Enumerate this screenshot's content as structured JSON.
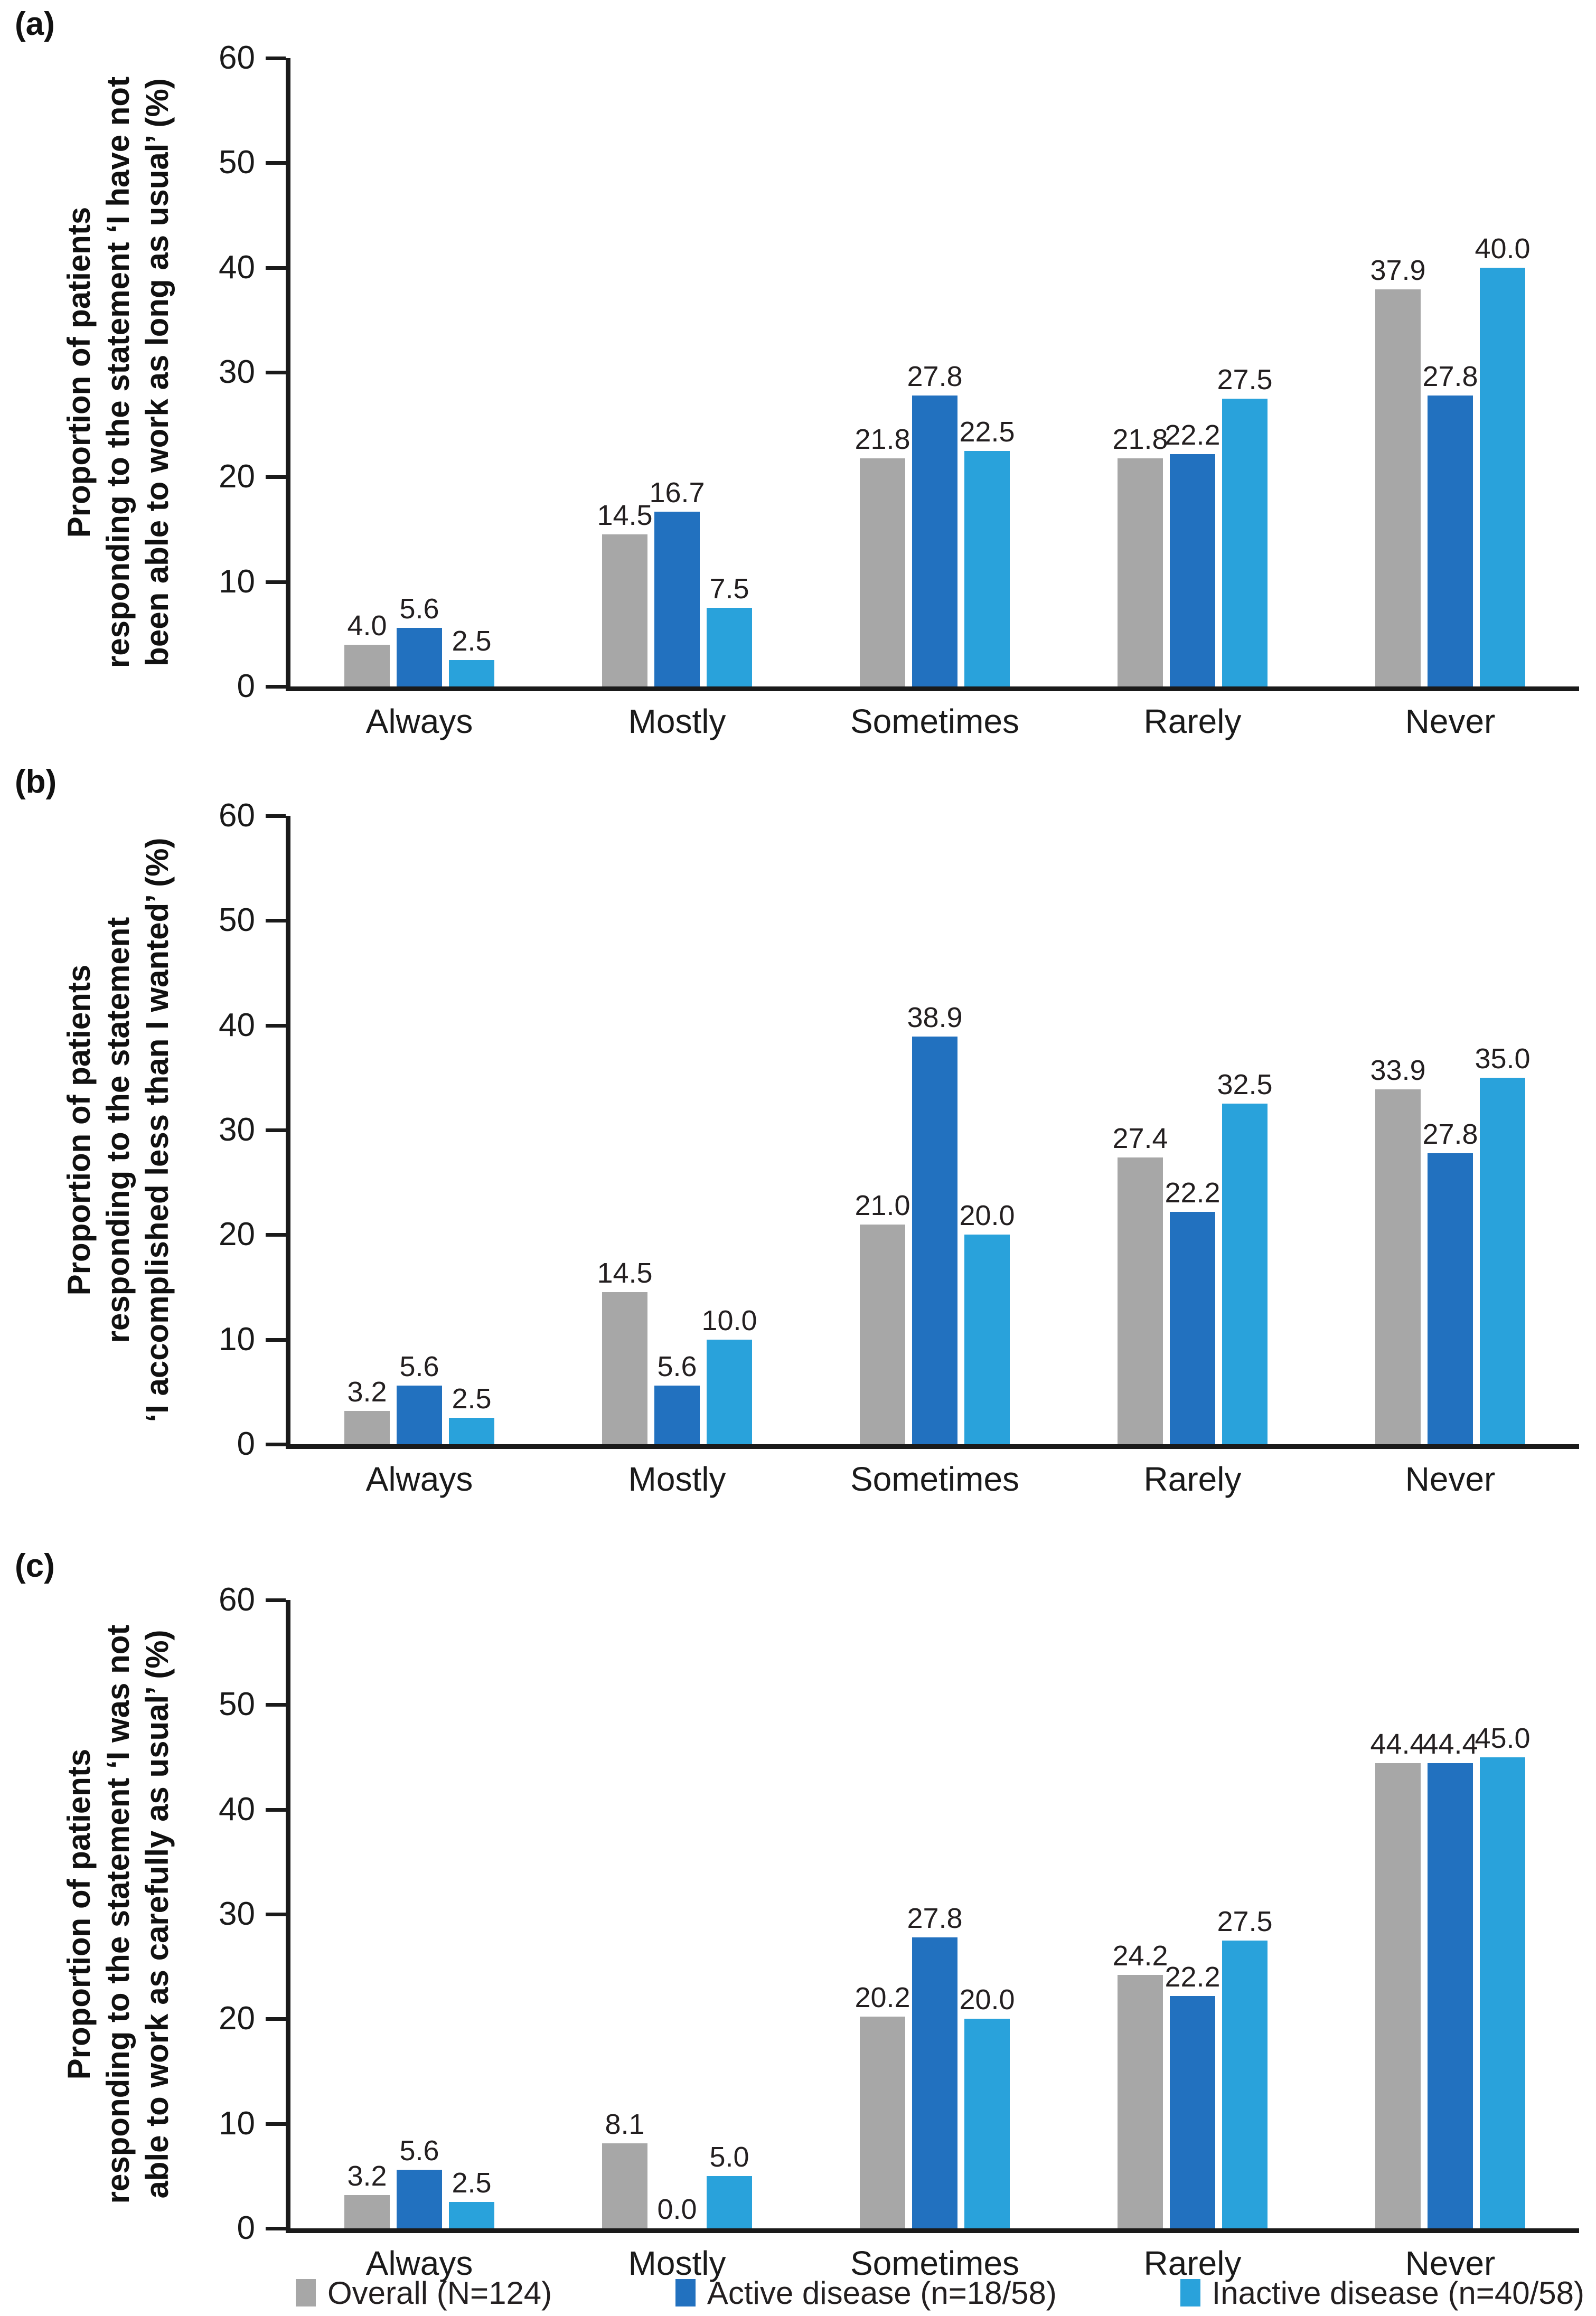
{
  "figure": {
    "panels": [
      {
        "label": "(a)",
        "ylabel_lines": [
          "Proportion of patients",
          "responding to the statement ‘I have not",
          "been able to work as long as usual’ (%)"
        ]
      },
      {
        "label": "(b)",
        "ylabel_lines": [
          "Proportion of patients",
          "responding to the statement",
          "‘I accomplished less than I wanted’ (%)"
        ]
      },
      {
        "label": "(c)",
        "ylabel_lines": [
          "Proportion of patients",
          "responding to the statement ‘I was not",
          "able to work as carefully as usual’ (%)"
        ]
      }
    ]
  },
  "legend": {
    "items": [
      {
        "label": "Overall (N=124)",
        "color": "#a7a7a7"
      },
      {
        "label": "Active disease (n=18/58)",
        "color": "#2271bf"
      },
      {
        "label": "Inactive disease (n=40/58)",
        "color": "#29a2db"
      }
    ]
  },
  "chart_data": [
    {
      "type": "bar",
      "panel": "a",
      "ylabel": "Proportion of patients responding to the statement ‘I have not been able to work as long as usual’ (%)",
      "xlabel": "",
      "categories": [
        "Always",
        "Mostly",
        "Sometimes",
        "Rarely",
        "Never"
      ],
      "series": [
        {
          "name": "Overall (N=124)",
          "values": [
            4.0,
            14.5,
            21.8,
            21.8,
            37.9
          ]
        },
        {
          "name": "Active disease (n=18/58)",
          "values": [
            5.6,
            16.7,
            27.8,
            22.2,
            27.8
          ]
        },
        {
          "name": "Inactive disease (n=40/58)",
          "values": [
            2.5,
            7.5,
            22.5,
            27.5,
            40.0
          ]
        }
      ],
      "ylim": [
        0,
        60
      ],
      "yticks": [
        0,
        10,
        20,
        30,
        40,
        50,
        60
      ],
      "data_labels": true,
      "grid": false,
      "legend_position": "bottom-shared"
    },
    {
      "type": "bar",
      "panel": "b",
      "ylabel": "Proportion of patients responding to the statement ‘I accomplished less than I wanted’ (%)",
      "xlabel": "",
      "categories": [
        "Always",
        "Mostly",
        "Sometimes",
        "Rarely",
        "Never"
      ],
      "series": [
        {
          "name": "Overall (N=124)",
          "values": [
            3.2,
            14.5,
            21.0,
            27.4,
            33.9
          ]
        },
        {
          "name": "Active disease (n=18/58)",
          "values": [
            5.6,
            5.6,
            38.9,
            22.2,
            27.8
          ]
        },
        {
          "name": "Inactive disease (n=40/58)",
          "values": [
            2.5,
            10.0,
            20.0,
            32.5,
            35.0
          ]
        }
      ],
      "ylim": [
        0,
        60
      ],
      "yticks": [
        0,
        10,
        20,
        30,
        40,
        50,
        60
      ],
      "data_labels": true,
      "grid": false,
      "legend_position": "bottom-shared"
    },
    {
      "type": "bar",
      "panel": "c",
      "ylabel": "Proportion of patients responding to the statement ‘I was not able to work as carefully as usual’ (%)",
      "xlabel": "",
      "categories": [
        "Always",
        "Mostly",
        "Sometimes",
        "Rarely",
        "Never"
      ],
      "series": [
        {
          "name": "Overall (N=124)",
          "values": [
            3.2,
            8.1,
            20.2,
            24.2,
            44.4
          ]
        },
        {
          "name": "Active disease (n=18/58)",
          "values": [
            5.6,
            0.0,
            27.8,
            22.2,
            44.4
          ]
        },
        {
          "name": "Inactive disease (n=40/58)",
          "values": [
            2.5,
            5.0,
            20.0,
            27.5,
            45.0
          ]
        }
      ],
      "ylim": [
        0,
        60
      ],
      "yticks": [
        0,
        10,
        20,
        30,
        40,
        50,
        60
      ],
      "data_labels": true,
      "grid": false,
      "legend_position": "bottom-shared"
    }
  ]
}
